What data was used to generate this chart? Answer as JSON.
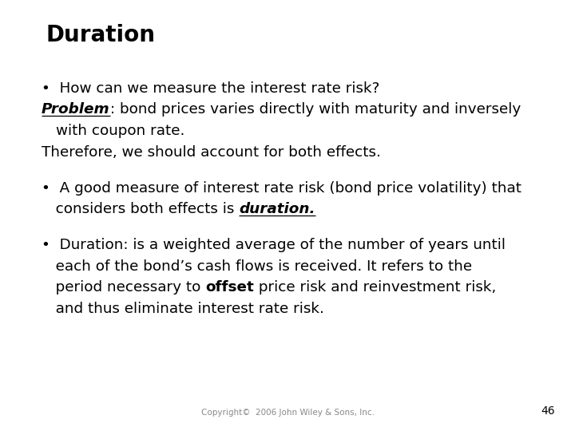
{
  "title": "Duration",
  "background_color": "#ffffff",
  "text_color": "#000000",
  "title_fontsize": 20,
  "body_fontsize": 13.2,
  "copyright_text": "Copyright©  2006 John Wiley & Sons, Inc.",
  "page_number": "46"
}
